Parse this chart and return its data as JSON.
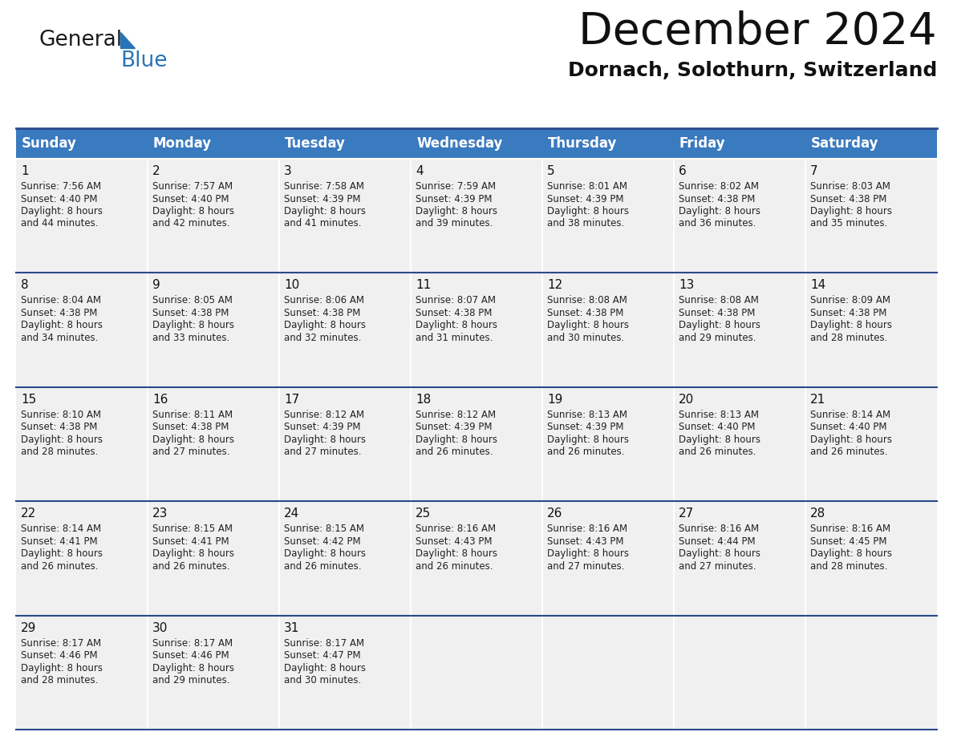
{
  "title": "December 2024",
  "subtitle": "Dornach, Solothurn, Switzerland",
  "header_color": "#3a7abf",
  "header_text_color": "#ffffff",
  "cell_bg_color": "#f0f0f0",
  "separator_color": "#2a4a8a",
  "day_names": [
    "Sunday",
    "Monday",
    "Tuesday",
    "Wednesday",
    "Thursday",
    "Friday",
    "Saturday"
  ],
  "weeks": [
    [
      {
        "day": 1,
        "sunrise": "7:56 AM",
        "sunset": "4:40 PM",
        "daylight": "8 hours and 44 minutes."
      },
      {
        "day": 2,
        "sunrise": "7:57 AM",
        "sunset": "4:40 PM",
        "daylight": "8 hours and 42 minutes."
      },
      {
        "day": 3,
        "sunrise": "7:58 AM",
        "sunset": "4:39 PM",
        "daylight": "8 hours and 41 minutes."
      },
      {
        "day": 4,
        "sunrise": "7:59 AM",
        "sunset": "4:39 PM",
        "daylight": "8 hours and 39 minutes."
      },
      {
        "day": 5,
        "sunrise": "8:01 AM",
        "sunset": "4:39 PM",
        "daylight": "8 hours and 38 minutes."
      },
      {
        "day": 6,
        "sunrise": "8:02 AM",
        "sunset": "4:38 PM",
        "daylight": "8 hours and 36 minutes."
      },
      {
        "day": 7,
        "sunrise": "8:03 AM",
        "sunset": "4:38 PM",
        "daylight": "8 hours and 35 minutes."
      }
    ],
    [
      {
        "day": 8,
        "sunrise": "8:04 AM",
        "sunset": "4:38 PM",
        "daylight": "8 hours and 34 minutes."
      },
      {
        "day": 9,
        "sunrise": "8:05 AM",
        "sunset": "4:38 PM",
        "daylight": "8 hours and 33 minutes."
      },
      {
        "day": 10,
        "sunrise": "8:06 AM",
        "sunset": "4:38 PM",
        "daylight": "8 hours and 32 minutes."
      },
      {
        "day": 11,
        "sunrise": "8:07 AM",
        "sunset": "4:38 PM",
        "daylight": "8 hours and 31 minutes."
      },
      {
        "day": 12,
        "sunrise": "8:08 AM",
        "sunset": "4:38 PM",
        "daylight": "8 hours and 30 minutes."
      },
      {
        "day": 13,
        "sunrise": "8:08 AM",
        "sunset": "4:38 PM",
        "daylight": "8 hours and 29 minutes."
      },
      {
        "day": 14,
        "sunrise": "8:09 AM",
        "sunset": "4:38 PM",
        "daylight": "8 hours and 28 minutes."
      }
    ],
    [
      {
        "day": 15,
        "sunrise": "8:10 AM",
        "sunset": "4:38 PM",
        "daylight": "8 hours and 28 minutes."
      },
      {
        "day": 16,
        "sunrise": "8:11 AM",
        "sunset": "4:38 PM",
        "daylight": "8 hours and 27 minutes."
      },
      {
        "day": 17,
        "sunrise": "8:12 AM",
        "sunset": "4:39 PM",
        "daylight": "8 hours and 27 minutes."
      },
      {
        "day": 18,
        "sunrise": "8:12 AM",
        "sunset": "4:39 PM",
        "daylight": "8 hours and 26 minutes."
      },
      {
        "day": 19,
        "sunrise": "8:13 AM",
        "sunset": "4:39 PM",
        "daylight": "8 hours and 26 minutes."
      },
      {
        "day": 20,
        "sunrise": "8:13 AM",
        "sunset": "4:40 PM",
        "daylight": "8 hours and 26 minutes."
      },
      {
        "day": 21,
        "sunrise": "8:14 AM",
        "sunset": "4:40 PM",
        "daylight": "8 hours and 26 minutes."
      }
    ],
    [
      {
        "day": 22,
        "sunrise": "8:14 AM",
        "sunset": "4:41 PM",
        "daylight": "8 hours and 26 minutes."
      },
      {
        "day": 23,
        "sunrise": "8:15 AM",
        "sunset": "4:41 PM",
        "daylight": "8 hours and 26 minutes."
      },
      {
        "day": 24,
        "sunrise": "8:15 AM",
        "sunset": "4:42 PM",
        "daylight": "8 hours and 26 minutes."
      },
      {
        "day": 25,
        "sunrise": "8:16 AM",
        "sunset": "4:43 PM",
        "daylight": "8 hours and 26 minutes."
      },
      {
        "day": 26,
        "sunrise": "8:16 AM",
        "sunset": "4:43 PM",
        "daylight": "8 hours and 27 minutes."
      },
      {
        "day": 27,
        "sunrise": "8:16 AM",
        "sunset": "4:44 PM",
        "daylight": "8 hours and 27 minutes."
      },
      {
        "day": 28,
        "sunrise": "8:16 AM",
        "sunset": "4:45 PM",
        "daylight": "8 hours and 28 minutes."
      }
    ],
    [
      {
        "day": 29,
        "sunrise": "8:17 AM",
        "sunset": "4:46 PM",
        "daylight": "8 hours and 28 minutes."
      },
      {
        "day": 30,
        "sunrise": "8:17 AM",
        "sunset": "4:46 PM",
        "daylight": "8 hours and 29 minutes."
      },
      {
        "day": 31,
        "sunrise": "8:17 AM",
        "sunset": "4:47 PM",
        "daylight": "8 hours and 30 minutes."
      },
      null,
      null,
      null,
      null
    ]
  ],
  "logo_general_color": "#1a1a1a",
  "logo_blue_color": "#2874b8",
  "logo_triangle_color": "#2874b8",
  "title_fontsize": 40,
  "subtitle_fontsize": 18,
  "header_fontsize": 12,
  "day_num_fontsize": 11,
  "cell_fontsize": 8.5
}
